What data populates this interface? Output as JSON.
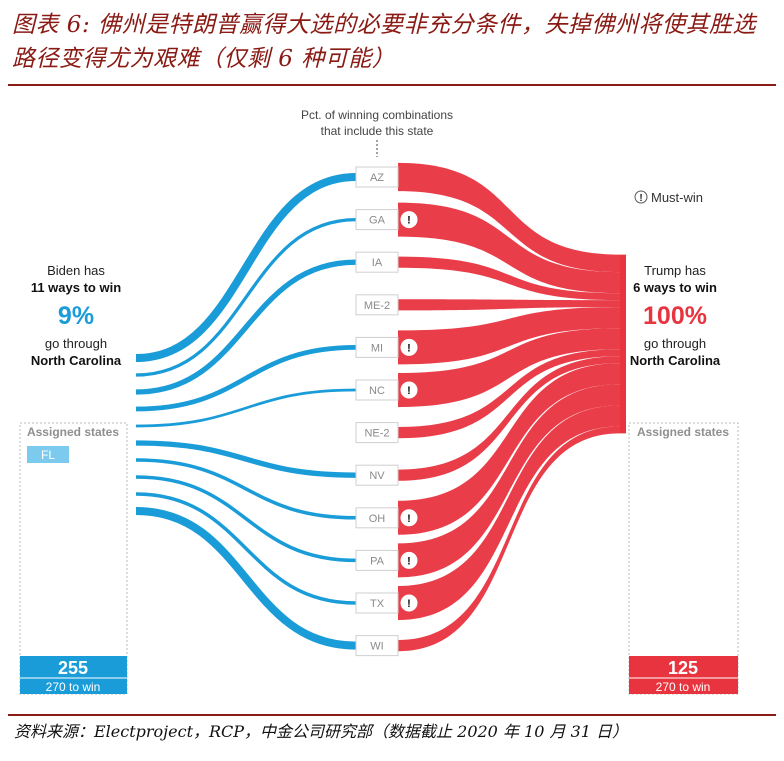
{
  "figure": {
    "title": "图表 6: 佛州是特朗普赢得大选的必要非充分条件，失掉佛州将使其胜选路径变得尤为艰难（仅剩 6 种可能）",
    "source": "资料来源：Electproject，RCP，中金公司研究部（数据截止 2020 年 10 月 31 日）"
  },
  "chart_data": {
    "type": "sankey",
    "center_header": "Pct. of winning combinations\nthat include this state",
    "legend_label": "Must-win",
    "colors": {
      "biden": "#1a9cd8",
      "trump": "#e8343f",
      "biden_light": "#7ccbee",
      "box_border": "#bbbbbb"
    },
    "states": [
      "AZ",
      "GA",
      "IA",
      "ME-2",
      "MI",
      "NC",
      "NE-2",
      "NV",
      "OH",
      "PA",
      "TX",
      "WI"
    ],
    "biden": {
      "line1": "Biden has",
      "line2": "11 ways to win",
      "pct": "9%",
      "line3": "go through",
      "line4": "North Carolina",
      "assigned_label": "Assigned states",
      "assigned_states": [
        "FL"
      ],
      "electoral_votes": "255",
      "to_win": "270 to win",
      "flow_weights": [
        1.0,
        0.2,
        0.55,
        0,
        0.45,
        0.12,
        0,
        0.55,
        0.25,
        0.25,
        0.25,
        1.0
      ]
    },
    "trump": {
      "line1": "Trump has",
      "line2": "6 ways to win",
      "pct": "100%",
      "line3": "go through",
      "line4": "North Carolina",
      "assigned_label": "Assigned states",
      "assigned_states": [],
      "electoral_votes": "125",
      "to_win": "270 to win",
      "flow_weights": [
        0.83,
        1.0,
        0.33,
        0.33,
        1.0,
        1.0,
        0.33,
        0.33,
        1.0,
        1.0,
        1.0,
        0.33
      ],
      "must_win": [
        false,
        true,
        false,
        false,
        true,
        true,
        false,
        false,
        true,
        true,
        true,
        false
      ]
    }
  }
}
